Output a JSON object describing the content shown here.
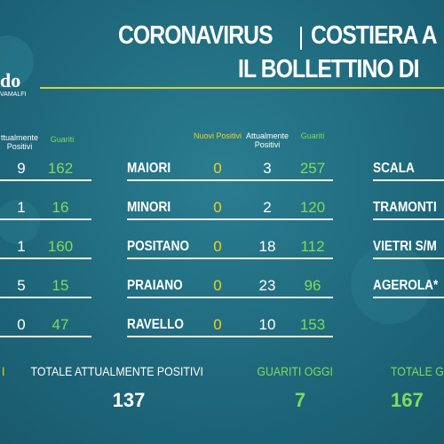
{
  "header": {
    "title_left": "CORONAVIRUS",
    "title_right": "COSTIERA A",
    "subtitle": "IL BOLLETTINO DI"
  },
  "logo": {
    "name": "do",
    "tagline": "VAMALFI"
  },
  "left_table": {
    "columns": [
      "ttualmente Positivi",
      "Guariti"
    ],
    "rows": [
      [
        "9",
        "162"
      ],
      [
        "1",
        "16"
      ],
      [
        "1",
        "160"
      ],
      [
        "5",
        "15"
      ],
      [
        "0",
        "47"
      ]
    ]
  },
  "middle_table": {
    "columns": [
      "Nuovi Positivi",
      "Attualmente Positivi",
      "Guariti"
    ],
    "rows": [
      [
        "MAIORI",
        "0",
        "3",
        "257"
      ],
      [
        "MINORI",
        "0",
        "2",
        "120"
      ],
      [
        "POSITANO",
        "0",
        "18",
        "112"
      ],
      [
        "PRAIANO",
        "0",
        "23",
        "96"
      ],
      [
        "RAVELLO",
        "0",
        "10",
        "153"
      ]
    ]
  },
  "right_table": {
    "rows": [
      "SCALA",
      "TRAMONTI",
      "VIETRI S/M",
      "AGEROLA*"
    ]
  },
  "totals": [
    {
      "label": "I",
      "value": null
    },
    {
      "label": "TOTALE ATTUALMENTE POSITIVI",
      "value": "137"
    },
    {
      "label": "GUARITI OGGI",
      "value": "7"
    },
    {
      "label": "TOTALE G",
      "value": "167"
    }
  ]
}
